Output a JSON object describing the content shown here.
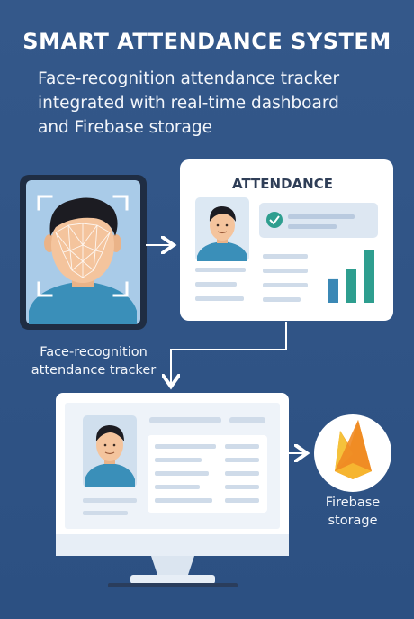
{
  "header": {
    "title": "SMART ATTENDANCE SYSTEM",
    "subtitle_lines": [
      "Face-recognition attendance tracker",
      "integrated with real-time dashboard",
      "and Firebase storage"
    ]
  },
  "attendance_card": {
    "title": "ATTENDANCE",
    "bar_values": [
      0.45,
      0.65,
      1.0
    ]
  },
  "tracker_label_lines": [
    "Face-recognition",
    "attendance tracker"
  ],
  "firebase_label_lines": [
    "Firebase",
    "storage"
  ],
  "icons": {
    "phone": "face-scan-phone-icon",
    "check": "check-circle-icon",
    "firebase": "firebase-flame-icon"
  },
  "colors": {
    "background": "#2d5282",
    "card": "#ffffff",
    "panel": "#dde7f2",
    "accent_teal": "#2e9e8f",
    "bar_blue": "#3b88b5",
    "flame_orange": "#f4a62a"
  }
}
